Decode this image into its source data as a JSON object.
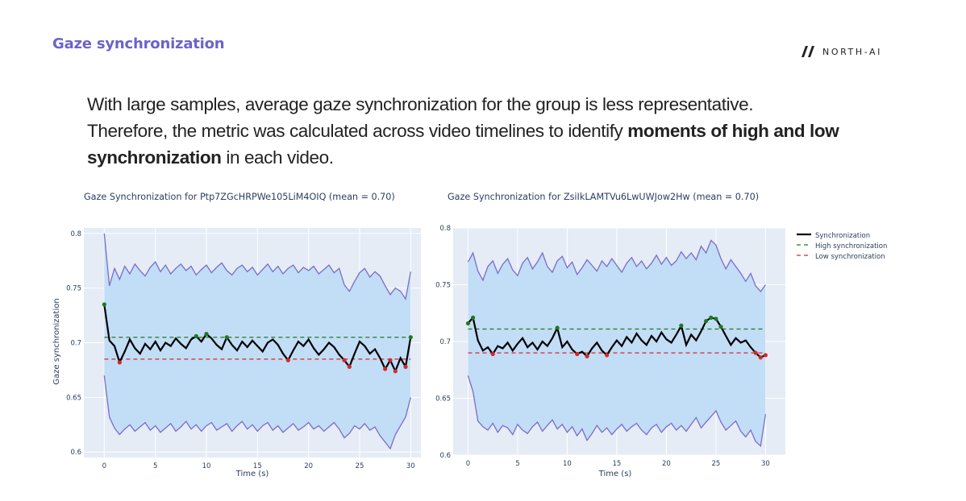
{
  "header": {
    "section_title": "Gaze synchronization",
    "logo_text": "NORTH-AI"
  },
  "intro": {
    "line1": "With large samples, average gaze synchronization for the group is less representative.",
    "line2_prefix": "Therefore, the metric was calculated across video timelines to identify ",
    "line2_bold": "moments of high and low synchronization",
    "line2_suffix": " in each video."
  },
  "colors": {
    "title": "#6b63c9",
    "plot_bg": "#e5ecf6",
    "band_fill": "#c2ddf6",
    "band_edge": "#7b6cc8",
    "sync_line": "#000000",
    "high": "#1f7a1f",
    "low": "#d62728"
  },
  "legend": {
    "sync": "Synchronization",
    "high": "High synchronization",
    "low": "Low synchronization"
  },
  "chart_data": [
    {
      "type": "line",
      "title": "Gaze Synchronization for Ptp7ZGcHRPWe105LiM4OIQ (mean = 0.70)",
      "xlabel": "Time (s)",
      "ylabel": "Gaze synchronization",
      "xlim": [
        -2,
        31
      ],
      "ylim": [
        0.595,
        0.805
      ],
      "xticks": [
        0,
        5,
        10,
        15,
        20,
        25,
        30
      ],
      "yticks": [
        0.6,
        0.65,
        0.7,
        0.75,
        0.8
      ],
      "high_threshold": 0.705,
      "low_threshold": 0.685,
      "x": [
        0,
        0.5,
        1,
        1.5,
        2,
        2.5,
        3,
        3.5,
        4,
        4.5,
        5,
        5.5,
        6,
        6.5,
        7,
        7.5,
        8,
        8.5,
        9,
        9.5,
        10,
        10.5,
        11,
        11.5,
        12,
        12.5,
        13,
        13.5,
        14,
        14.5,
        15,
        15.5,
        16,
        16.5,
        17,
        17.5,
        18,
        18.5,
        19,
        19.5,
        20,
        20.5,
        21,
        21.5,
        22,
        22.5,
        23,
        23.5,
        24,
        24.5,
        25,
        25.5,
        26,
        26.5,
        27,
        27.5,
        28,
        28.5,
        29,
        29.5,
        30
      ],
      "series": [
        {
          "name": "Synchronization",
          "values": [
            0.735,
            0.702,
            0.697,
            0.682,
            0.692,
            0.703,
            0.695,
            0.69,
            0.699,
            0.694,
            0.701,
            0.693,
            0.7,
            0.697,
            0.704,
            0.699,
            0.695,
            0.703,
            0.706,
            0.701,
            0.708,
            0.704,
            0.698,
            0.694,
            0.705,
            0.698,
            0.693,
            0.701,
            0.696,
            0.702,
            0.697,
            0.692,
            0.7,
            0.703,
            0.698,
            0.69,
            0.684,
            0.693,
            0.701,
            0.697,
            0.703,
            0.695,
            0.689,
            0.694,
            0.7,
            0.696,
            0.689,
            0.684,
            0.678,
            0.69,
            0.701,
            0.697,
            0.69,
            0.694,
            0.686,
            0.676,
            0.684,
            0.674,
            0.686,
            0.678,
            0.705
          ]
        },
        {
          "name": "Upper bound",
          "values": [
            0.8,
            0.752,
            0.768,
            0.758,
            0.77,
            0.763,
            0.772,
            0.766,
            0.761,
            0.769,
            0.774,
            0.765,
            0.771,
            0.763,
            0.768,
            0.772,
            0.766,
            0.77,
            0.762,
            0.767,
            0.771,
            0.764,
            0.769,
            0.773,
            0.766,
            0.762,
            0.768,
            0.771,
            0.765,
            0.769,
            0.762,
            0.767,
            0.772,
            0.765,
            0.77,
            0.763,
            0.768,
            0.771,
            0.764,
            0.769,
            0.766,
            0.77,
            0.763,
            0.767,
            0.771,
            0.764,
            0.768,
            0.753,
            0.747,
            0.756,
            0.764,
            0.768,
            0.76,
            0.765,
            0.761,
            0.752,
            0.744,
            0.75,
            0.747,
            0.74,
            0.765
          ]
        },
        {
          "name": "Lower bound",
          "values": [
            0.67,
            0.632,
            0.622,
            0.616,
            0.621,
            0.625,
            0.619,
            0.623,
            0.627,
            0.62,
            0.624,
            0.618,
            0.622,
            0.626,
            0.619,
            0.623,
            0.628,
            0.621,
            0.625,
            0.619,
            0.624,
            0.627,
            0.62,
            0.623,
            0.626,
            0.619,
            0.624,
            0.628,
            0.621,
            0.625,
            0.619,
            0.624,
            0.627,
            0.62,
            0.624,
            0.618,
            0.622,
            0.626,
            0.62,
            0.623,
            0.627,
            0.621,
            0.624,
            0.619,
            0.623,
            0.627,
            0.621,
            0.613,
            0.617,
            0.624,
            0.621,
            0.626,
            0.62,
            0.623,
            0.615,
            0.609,
            0.603,
            0.616,
            0.624,
            0.632,
            0.65
          ]
        }
      ]
    },
    {
      "type": "line",
      "title": "Gaze Synchronization for ZsiIkLAMTVu6LwUWJow2Hw (mean = 0.70)",
      "xlabel": "Time (s)",
      "ylabel": "",
      "xlim": [
        -1.5,
        32
      ],
      "ylim": [
        0.6,
        0.8
      ],
      "xticks": [
        0,
        5,
        10,
        15,
        20,
        25,
        30
      ],
      "yticks": [
        0.6,
        0.65,
        0.7,
        0.75,
        0.8
      ],
      "high_threshold": 0.711,
      "low_threshold": 0.69,
      "x": [
        0,
        0.5,
        1,
        1.5,
        2,
        2.5,
        3,
        3.5,
        4,
        4.5,
        5,
        5.5,
        6,
        6.5,
        7,
        7.5,
        8,
        8.5,
        9,
        9.5,
        10,
        10.5,
        11,
        11.5,
        12,
        12.5,
        13,
        13.5,
        14,
        14.5,
        15,
        15.5,
        16,
        16.5,
        17,
        17.5,
        18,
        18.5,
        19,
        19.5,
        20,
        20.5,
        21,
        21.5,
        22,
        22.5,
        23,
        23.5,
        24,
        24.5,
        25,
        25.5,
        26,
        26.5,
        27,
        27.5,
        28,
        28.5,
        29,
        29.5,
        30
      ],
      "series": [
        {
          "name": "Synchronization",
          "values": [
            0.716,
            0.721,
            0.701,
            0.692,
            0.695,
            0.689,
            0.696,
            0.694,
            0.699,
            0.692,
            0.698,
            0.703,
            0.695,
            0.699,
            0.693,
            0.7,
            0.696,
            0.703,
            0.712,
            0.695,
            0.7,
            0.693,
            0.689,
            0.691,
            0.687,
            0.694,
            0.699,
            0.692,
            0.688,
            0.695,
            0.701,
            0.696,
            0.704,
            0.699,
            0.707,
            0.701,
            0.697,
            0.705,
            0.7,
            0.708,
            0.702,
            0.699,
            0.706,
            0.714,
            0.697,
            0.706,
            0.701,
            0.709,
            0.718,
            0.721,
            0.72,
            0.713,
            0.705,
            0.697,
            0.703,
            0.699,
            0.701,
            0.695,
            0.69,
            0.686,
            0.688
          ]
        },
        {
          "name": "Upper bound",
          "values": [
            0.77,
            0.778,
            0.762,
            0.754,
            0.766,
            0.771,
            0.76,
            0.768,
            0.773,
            0.763,
            0.758,
            0.769,
            0.774,
            0.764,
            0.77,
            0.778,
            0.766,
            0.761,
            0.771,
            0.775,
            0.765,
            0.77,
            0.759,
            0.765,
            0.772,
            0.767,
            0.762,
            0.771,
            0.766,
            0.773,
            0.767,
            0.761,
            0.769,
            0.774,
            0.766,
            0.771,
            0.764,
            0.769,
            0.776,
            0.768,
            0.774,
            0.767,
            0.771,
            0.779,
            0.773,
            0.778,
            0.772,
            0.784,
            0.778,
            0.789,
            0.785,
            0.773,
            0.764,
            0.772,
            0.766,
            0.76,
            0.753,
            0.76,
            0.749,
            0.744,
            0.75
          ]
        },
        {
          "name": "Lower bound",
          "values": [
            0.67,
            0.656,
            0.63,
            0.625,
            0.622,
            0.628,
            0.62,
            0.626,
            0.624,
            0.618,
            0.627,
            0.622,
            0.619,
            0.625,
            0.629,
            0.621,
            0.626,
            0.631,
            0.623,
            0.627,
            0.62,
            0.625,
            0.617,
            0.623,
            0.613,
            0.619,
            0.626,
            0.62,
            0.624,
            0.618,
            0.623,
            0.627,
            0.621,
            0.625,
            0.628,
            0.622,
            0.618,
            0.624,
            0.627,
            0.62,
            0.625,
            0.628,
            0.622,
            0.626,
            0.621,
            0.627,
            0.633,
            0.624,
            0.629,
            0.634,
            0.639,
            0.629,
            0.622,
            0.626,
            0.63,
            0.621,
            0.616,
            0.622,
            0.612,
            0.608,
            0.636
          ]
        }
      ]
    }
  ]
}
